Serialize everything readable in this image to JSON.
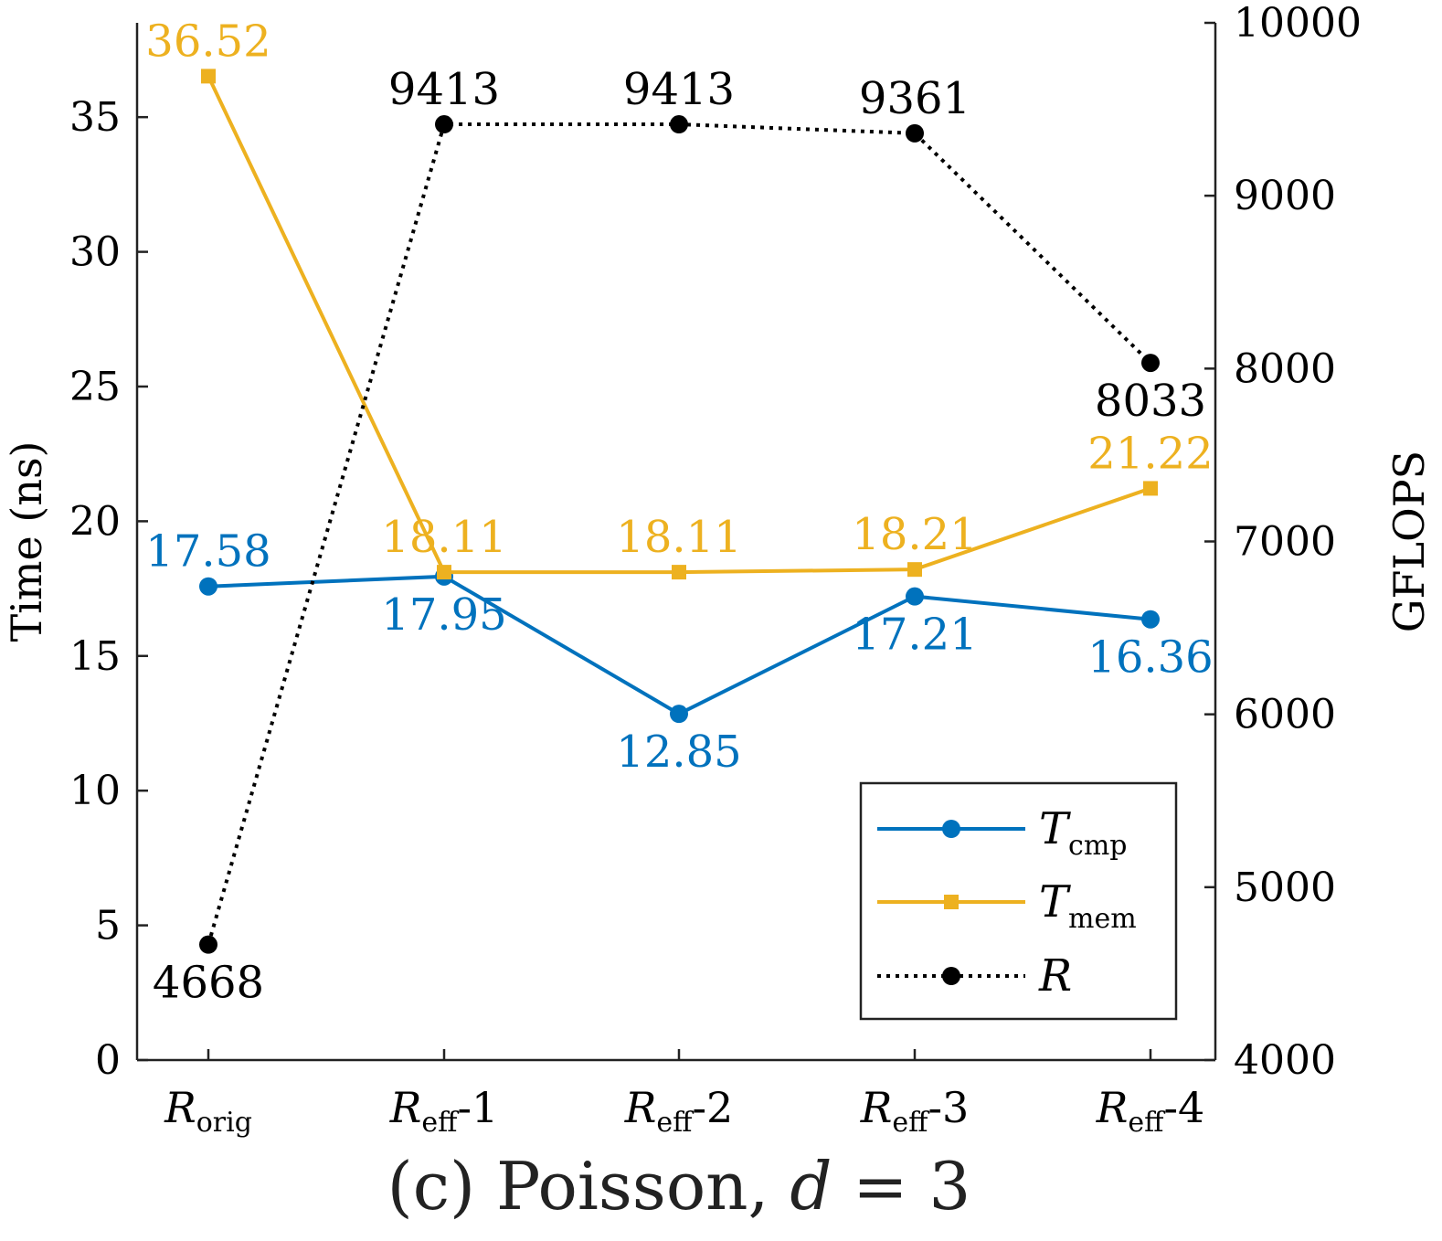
{
  "chart_data": {
    "type": "line",
    "title": "(c) Poisson, d = 3",
    "title_parts": {
      "prefix": "(c) Poisson, ",
      "var": "d",
      "suffix": " = 3"
    },
    "ylabel_left": "Time (ns)",
    "ylabel_right": "GFLOPS",
    "ylim_left": [
      0,
      38.5
    ],
    "ylim_right": [
      4000,
      10000
    ],
    "yticks_left": [
      0,
      5,
      10,
      15,
      20,
      25,
      30,
      35
    ],
    "yticks_right": [
      4000,
      5000,
      6000,
      7000,
      8000,
      9000,
      10000
    ],
    "categories": [
      {
        "main": "R",
        "sub": "orig",
        "suffix": ""
      },
      {
        "main": "R",
        "sub": "eff",
        "suffix": "-1"
      },
      {
        "main": "R",
        "sub": "eff",
        "suffix": "-2"
      },
      {
        "main": "R",
        "sub": "eff",
        "suffix": "-3"
      },
      {
        "main": "R",
        "sub": "eff",
        "suffix": "-4"
      }
    ],
    "series": [
      {
        "name": "T_cmp",
        "legend_main": "T",
        "legend_sub": "cmp",
        "axis": "left",
        "color": "#0072BD",
        "marker": "circle",
        "line": "solid",
        "values": [
          17.58,
          17.95,
          12.85,
          17.21,
          16.36
        ],
        "labels": [
          "17.58",
          "17.95",
          "12.85",
          "17.21",
          "16.36"
        ],
        "label_pos": [
          "above",
          "below",
          "below",
          "below",
          "below"
        ]
      },
      {
        "name": "T_mem",
        "legend_main": "T",
        "legend_sub": "mem",
        "axis": "left",
        "color": "#EDB120",
        "marker": "square",
        "line": "solid",
        "values": [
          36.52,
          18.11,
          18.11,
          18.21,
          21.22
        ],
        "labels": [
          "36.52",
          "18.11",
          "18.11",
          "18.21",
          "21.22"
        ],
        "label_pos": [
          "above",
          "above",
          "above",
          "above",
          "above"
        ]
      },
      {
        "name": "R",
        "legend_main": "R",
        "legend_sub": "",
        "axis": "right",
        "color": "#000000",
        "marker": "circle",
        "line": "dotted",
        "values": [
          4668,
          9413,
          9413,
          9361,
          8033
        ],
        "labels": [
          "4668",
          "9413",
          "9413",
          "9361",
          "8033"
        ],
        "label_pos": [
          "below",
          "above",
          "above",
          "above",
          "below"
        ]
      }
    ],
    "legend_location": "bottom-right",
    "grid": false
  }
}
